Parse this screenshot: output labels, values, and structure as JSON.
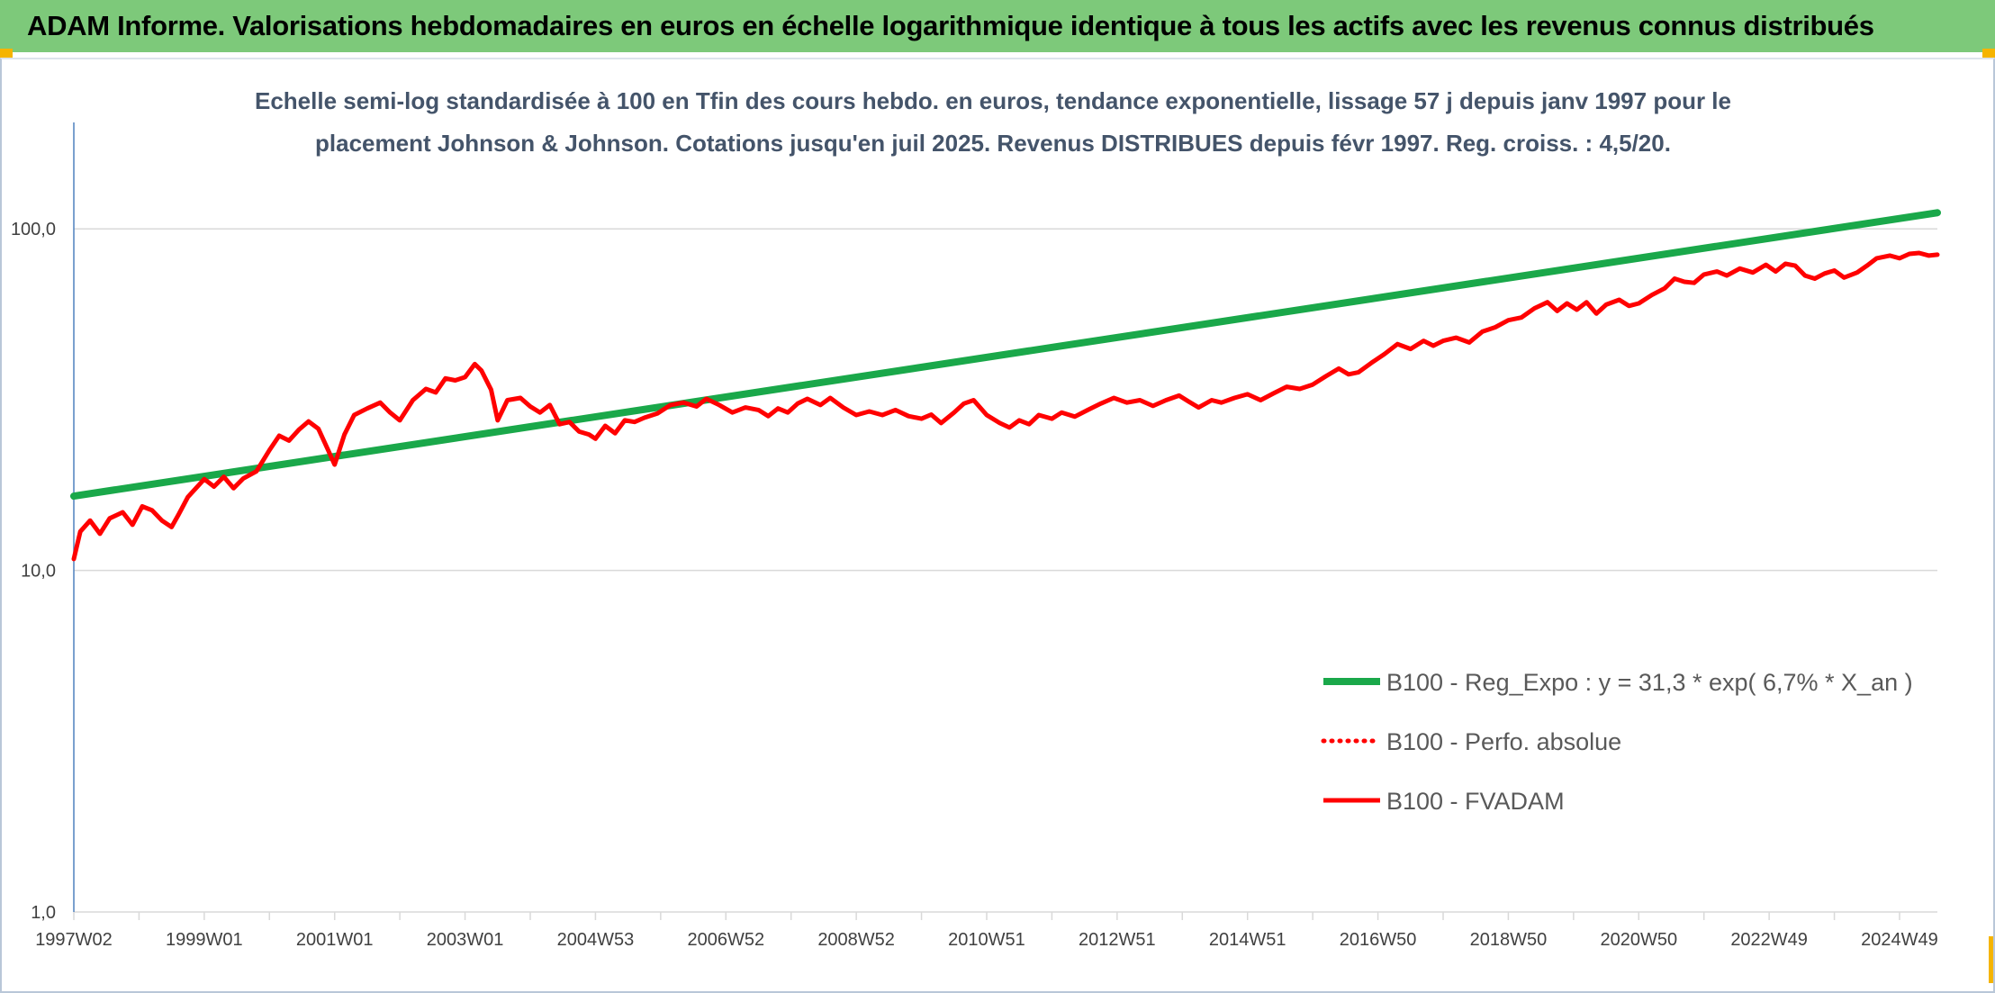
{
  "page": {
    "banner_title": "ADAM Informe. Valorisations hebdomadaires en euros en échelle logarithmique identique à tous les actifs avec les revenus connus distribués"
  },
  "colors": {
    "banner_bg": "#7dc97a",
    "corner_accent": "#f5b400",
    "trend_line": "#1aa84a",
    "fvadam_line": "#ff0000",
    "perfo_line": "#ff0000",
    "gridline": "#d9d9d9",
    "y_axis_line": "#4f81bd"
  },
  "chart_data": {
    "type": "line",
    "title_lines": [
      "Echelle semi-log standardisée à 100 en Tfin des cours hebdo. en euros, tendance exponentielle, lissage 57 j depuis janv 1997 pour le",
      "placement Johnson & Johnson. Cotations jusqu'en juil 2025. Revenus DISTRIBUES depuis févr 1997. Reg. croiss. : 4,5/20."
    ],
    "y_scale": "log",
    "ylim": [
      1,
      200
    ],
    "y_ticks": [
      {
        "value": 1,
        "label": "1,0"
      },
      {
        "value": 10,
        "label": "10,0"
      },
      {
        "value": 100,
        "label": "100,0"
      }
    ],
    "xlim": [
      1997.0,
      2025.58
    ],
    "x_ticks": [
      {
        "value": 1997.0,
        "label": "1997W02"
      },
      {
        "value": 1999.0,
        "label": "1999W01"
      },
      {
        "value": 2001.0,
        "label": "2001W01"
      },
      {
        "value": 2003.0,
        "label": "2003W01"
      },
      {
        "value": 2005.0,
        "label": "2004W53"
      },
      {
        "value": 2007.0,
        "label": "2006W52"
      },
      {
        "value": 2009.0,
        "label": "2008W52"
      },
      {
        "value": 2011.0,
        "label": "2010W51"
      },
      {
        "value": 2013.0,
        "label": "2012W51"
      },
      {
        "value": 2015.0,
        "label": "2014W51"
      },
      {
        "value": 2017.0,
        "label": "2016W50"
      },
      {
        "value": 2019.0,
        "label": "2018W50"
      },
      {
        "value": 2021.0,
        "label": "2020W50"
      },
      {
        "value": 2023.0,
        "label": "2022W49"
      },
      {
        "value": 2025.0,
        "label": "2024W49"
      }
    ],
    "grid": {
      "horizontal": true,
      "vertical_minor_ticks": true
    },
    "legend_position": "bottom-right",
    "series": [
      {
        "name": "B100 - Reg_Expo : y = 31,3 * exp( 6,7% *  X_an )",
        "style": "solid-thick",
        "color": "#1aa84a",
        "points": [
          [
            1997.0,
            16.5
          ],
          [
            2025.58,
            111.5
          ]
        ]
      },
      {
        "name": "B100 - Perfo. absolue",
        "style": "dotted",
        "color": "#ff0000",
        "points": []
      },
      {
        "name": "B100 - FVADAM",
        "style": "solid",
        "color": "#ff0000",
        "points": [
          [
            1997.0,
            10.8
          ],
          [
            1997.1,
            13.0
          ],
          [
            1997.25,
            14.0
          ],
          [
            1997.4,
            12.8
          ],
          [
            1997.55,
            14.2
          ],
          [
            1997.75,
            14.8
          ],
          [
            1997.9,
            13.6
          ],
          [
            1998.05,
            15.4
          ],
          [
            1998.2,
            15.0
          ],
          [
            1998.35,
            14.0
          ],
          [
            1998.5,
            13.4
          ],
          [
            1998.6,
            14.5
          ],
          [
            1998.75,
            16.4
          ],
          [
            1999.0,
            18.5
          ],
          [
            1999.15,
            17.6
          ],
          [
            1999.3,
            18.8
          ],
          [
            1999.45,
            17.4
          ],
          [
            1999.6,
            18.6
          ],
          [
            1999.8,
            19.5
          ],
          [
            2000.0,
            22.5
          ],
          [
            2000.15,
            24.8
          ],
          [
            2000.3,
            24.0
          ],
          [
            2000.45,
            25.8
          ],
          [
            2000.6,
            27.3
          ],
          [
            2000.75,
            26.0
          ],
          [
            2000.9,
            22.5
          ],
          [
            2001.0,
            20.4
          ],
          [
            2001.15,
            25.0
          ],
          [
            2001.3,
            28.5
          ],
          [
            2001.5,
            29.8
          ],
          [
            2001.7,
            31.0
          ],
          [
            2001.85,
            29.0
          ],
          [
            2002.0,
            27.5
          ],
          [
            2002.2,
            31.5
          ],
          [
            2002.4,
            34.0
          ],
          [
            2002.55,
            33.2
          ],
          [
            2002.7,
            36.5
          ],
          [
            2002.85,
            36.0
          ],
          [
            2003.0,
            36.8
          ],
          [
            2003.15,
            40.2
          ],
          [
            2003.25,
            38.5
          ],
          [
            2003.4,
            33.8
          ],
          [
            2003.5,
            27.5
          ],
          [
            2003.65,
            31.5
          ],
          [
            2003.85,
            32.0
          ],
          [
            2004.0,
            30.2
          ],
          [
            2004.15,
            29.0
          ],
          [
            2004.3,
            30.5
          ],
          [
            2004.45,
            26.8
          ],
          [
            2004.6,
            27.2
          ],
          [
            2004.75,
            25.5
          ],
          [
            2004.9,
            25.0
          ],
          [
            2005.0,
            24.3
          ],
          [
            2005.15,
            26.5
          ],
          [
            2005.3,
            25.2
          ],
          [
            2005.45,
            27.5
          ],
          [
            2005.6,
            27.2
          ],
          [
            2005.75,
            28.0
          ],
          [
            2005.95,
            28.8
          ],
          [
            2006.15,
            30.5
          ],
          [
            2006.35,
            31.0
          ],
          [
            2006.55,
            30.2
          ],
          [
            2006.7,
            31.8
          ],
          [
            2006.9,
            30.5
          ],
          [
            2007.1,
            29.0
          ],
          [
            2007.3,
            30.0
          ],
          [
            2007.5,
            29.5
          ],
          [
            2007.65,
            28.3
          ],
          [
            2007.8,
            29.8
          ],
          [
            2007.95,
            29.0
          ],
          [
            2008.1,
            30.8
          ],
          [
            2008.25,
            31.8
          ],
          [
            2008.45,
            30.5
          ],
          [
            2008.6,
            32.0
          ],
          [
            2008.8,
            30.0
          ],
          [
            2009.0,
            28.5
          ],
          [
            2009.2,
            29.2
          ],
          [
            2009.4,
            28.5
          ],
          [
            2009.6,
            29.5
          ],
          [
            2009.8,
            28.3
          ],
          [
            2010.0,
            27.8
          ],
          [
            2010.15,
            28.6
          ],
          [
            2010.3,
            27.0
          ],
          [
            2010.5,
            29.0
          ],
          [
            2010.65,
            30.8
          ],
          [
            2010.8,
            31.5
          ],
          [
            2011.0,
            28.5
          ],
          [
            2011.2,
            27.0
          ],
          [
            2011.35,
            26.2
          ],
          [
            2011.5,
            27.5
          ],
          [
            2011.65,
            26.8
          ],
          [
            2011.8,
            28.5
          ],
          [
            2012.0,
            27.8
          ],
          [
            2012.15,
            29.0
          ],
          [
            2012.35,
            28.2
          ],
          [
            2012.55,
            29.5
          ],
          [
            2012.75,
            30.8
          ],
          [
            2012.95,
            32.0
          ],
          [
            2013.15,
            31.0
          ],
          [
            2013.35,
            31.5
          ],
          [
            2013.55,
            30.3
          ],
          [
            2013.75,
            31.5
          ],
          [
            2013.95,
            32.5
          ],
          [
            2014.1,
            31.2
          ],
          [
            2014.25,
            30.0
          ],
          [
            2014.45,
            31.5
          ],
          [
            2014.6,
            31.0
          ],
          [
            2014.8,
            32.0
          ],
          [
            2015.0,
            32.8
          ],
          [
            2015.2,
            31.5
          ],
          [
            2015.4,
            33.0
          ],
          [
            2015.6,
            34.5
          ],
          [
            2015.8,
            34.0
          ],
          [
            2016.0,
            35.0
          ],
          [
            2016.2,
            37.0
          ],
          [
            2016.4,
            39.0
          ],
          [
            2016.55,
            37.5
          ],
          [
            2016.7,
            38.0
          ],
          [
            2016.9,
            40.5
          ],
          [
            2017.1,
            43.0
          ],
          [
            2017.3,
            46.0
          ],
          [
            2017.5,
            44.5
          ],
          [
            2017.7,
            47.0
          ],
          [
            2017.85,
            45.5
          ],
          [
            2018.0,
            47.0
          ],
          [
            2018.2,
            48.0
          ],
          [
            2018.4,
            46.5
          ],
          [
            2018.6,
            50.0
          ],
          [
            2018.8,
            51.5
          ],
          [
            2019.0,
            54.0
          ],
          [
            2019.2,
            55.0
          ],
          [
            2019.4,
            58.5
          ],
          [
            2019.6,
            61.0
          ],
          [
            2019.75,
            57.5
          ],
          [
            2019.9,
            60.5
          ],
          [
            2020.05,
            58.0
          ],
          [
            2020.2,
            61.0
          ],
          [
            2020.35,
            56.5
          ],
          [
            2020.5,
            60.0
          ],
          [
            2020.7,
            62.0
          ],
          [
            2020.85,
            59.5
          ],
          [
            2021.0,
            60.5
          ],
          [
            2021.2,
            64.0
          ],
          [
            2021.4,
            67.0
          ],
          [
            2021.55,
            71.5
          ],
          [
            2021.7,
            70.0
          ],
          [
            2021.85,
            69.5
          ],
          [
            2022.0,
            73.5
          ],
          [
            2022.2,
            75.0
          ],
          [
            2022.35,
            73.0
          ],
          [
            2022.55,
            76.5
          ],
          [
            2022.75,
            74.5
          ],
          [
            2022.95,
            78.5
          ],
          [
            2023.1,
            75.0
          ],
          [
            2023.25,
            79.0
          ],
          [
            2023.4,
            78.0
          ],
          [
            2023.55,
            73.0
          ],
          [
            2023.7,
            71.5
          ],
          [
            2023.85,
            74.0
          ],
          [
            2024.0,
            75.5
          ],
          [
            2024.15,
            72.0
          ],
          [
            2024.35,
            74.5
          ],
          [
            2024.5,
            78.0
          ],
          [
            2024.65,
            82.0
          ],
          [
            2024.85,
            83.5
          ],
          [
            2025.0,
            82.0
          ],
          [
            2025.15,
            84.5
          ],
          [
            2025.3,
            85.0
          ],
          [
            2025.45,
            83.5
          ],
          [
            2025.58,
            84.0
          ]
        ]
      }
    ]
  }
}
